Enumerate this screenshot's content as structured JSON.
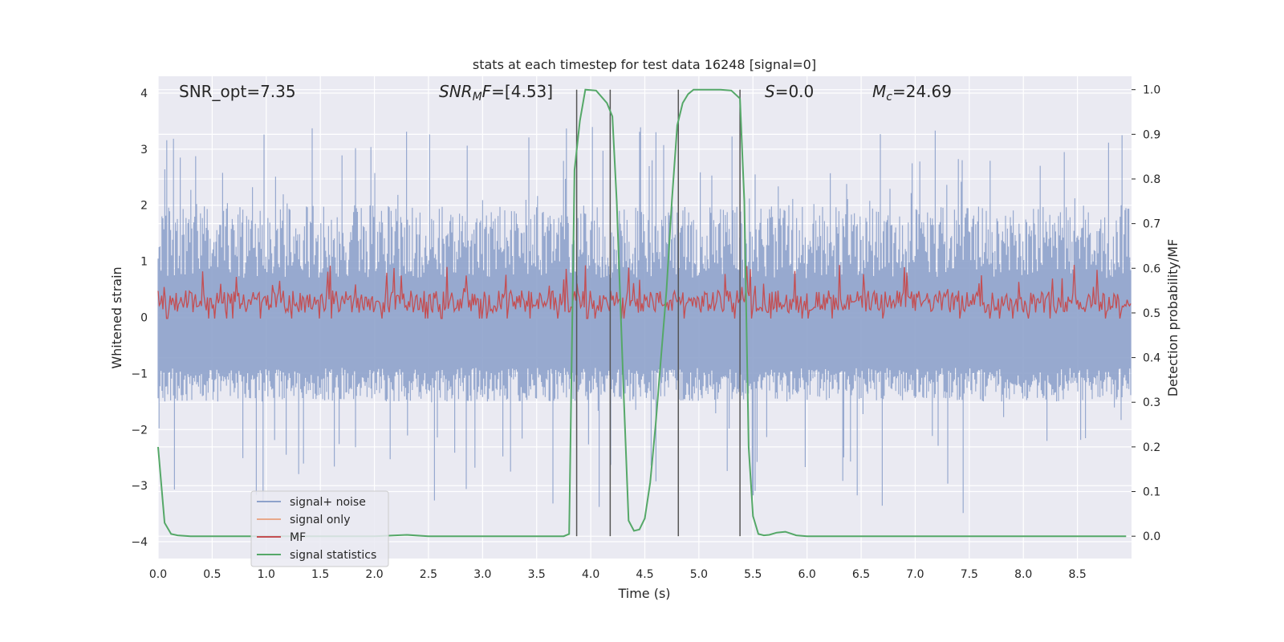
{
  "chart_data": {
    "type": "line",
    "title": "stats at each timestep for test data 16248 [signal=0]",
    "xlabel": "Time (s)",
    "ylabel_left": "Whitened strain",
    "ylabel_right": "Detection probability/MF",
    "xlim": [
      0,
      9
    ],
    "ylim_left": [
      -4.3,
      4.3
    ],
    "ylim_right": [
      -0.05,
      1.03
    ],
    "x_ticks": [
      "0.0",
      "0.5",
      "1.0",
      "1.5",
      "2.0",
      "2.5",
      "3.0",
      "3.5",
      "4.0",
      "4.5",
      "5.0",
      "5.5",
      "6.0",
      "6.5",
      "7.0",
      "7.5",
      "8.0",
      "8.5"
    ],
    "y_ticks_left": [
      "4",
      "3",
      "2",
      "1",
      "0",
      "−1",
      "−2",
      "−3",
      "−4"
    ],
    "y_ticks_right": [
      "1.0",
      "0.9",
      "0.8",
      "0.7",
      "0.6",
      "0.5",
      "0.4",
      "0.3",
      "0.2",
      "0.1",
      "0.0"
    ],
    "grid": true,
    "legend_position": "lower-left",
    "annotations": {
      "snr_opt": "SNR_opt=7.35",
      "snr_mf_base": "SNR",
      "snr_mf_sub": "M",
      "snr_mf_rest": "F=[4.53]",
      "s": "S",
      "s_rest": "=0.0",
      "mc": "M",
      "mc_sub": "c",
      "mc_rest": "=24.69"
    },
    "series": [
      {
        "name": "signal+ noise",
        "color": "#8ea2cb",
        "envelope": {
          "typical_max": 2.0,
          "peak_max": 3.4,
          "typical_min": -1.5,
          "peak_min": -3.5
        }
      },
      {
        "name": "signal only",
        "color": "#e8a88a"
      },
      {
        "name": "MF",
        "color": "#c44e52",
        "envelope": {
          "typical": 0.28,
          "peak": 0.95
        }
      },
      {
        "name": "signal statistics",
        "color": "#55a868",
        "x": [
          0.0,
          0.06,
          0.12,
          0.18,
          0.3,
          0.6,
          1.0,
          1.5,
          2.0,
          2.3,
          2.5,
          3.0,
          3.5,
          3.75,
          3.8,
          3.85,
          3.9,
          3.95,
          4.05,
          4.15,
          4.2,
          4.24,
          4.3,
          4.35,
          4.4,
          4.45,
          4.5,
          4.55,
          4.6,
          4.65,
          4.7,
          4.75,
          4.8,
          4.85,
          4.9,
          4.95,
          5.0,
          5.1,
          5.2,
          5.3,
          5.38,
          5.42,
          5.46,
          5.5,
          5.55,
          5.6,
          5.65,
          5.72,
          5.8,
          5.9,
          6.0,
          6.5,
          7.0,
          8.0,
          8.95
        ],
        "y": [
          0.2,
          0.03,
          0.005,
          0.002,
          0.0,
          0.0,
          0.0,
          0.0,
          0.0,
          0.003,
          0.0,
          0.0,
          0.0,
          0.0,
          0.005,
          0.82,
          0.93,
          1.0,
          0.998,
          0.97,
          0.94,
          0.75,
          0.35,
          0.035,
          0.012,
          0.015,
          0.04,
          0.12,
          0.25,
          0.4,
          0.55,
          0.75,
          0.92,
          0.97,
          0.99,
          1.0,
          1.0,
          1.0,
          1.0,
          0.998,
          0.98,
          0.75,
          0.2,
          0.045,
          0.005,
          0.002,
          0.003,
          0.008,
          0.01,
          0.002,
          0.0,
          0.0,
          0.0,
          0.0,
          0.0
        ]
      }
    ],
    "vertical_lines_x": [
      3.87,
      4.18,
      4.81,
      5.38
    ]
  }
}
